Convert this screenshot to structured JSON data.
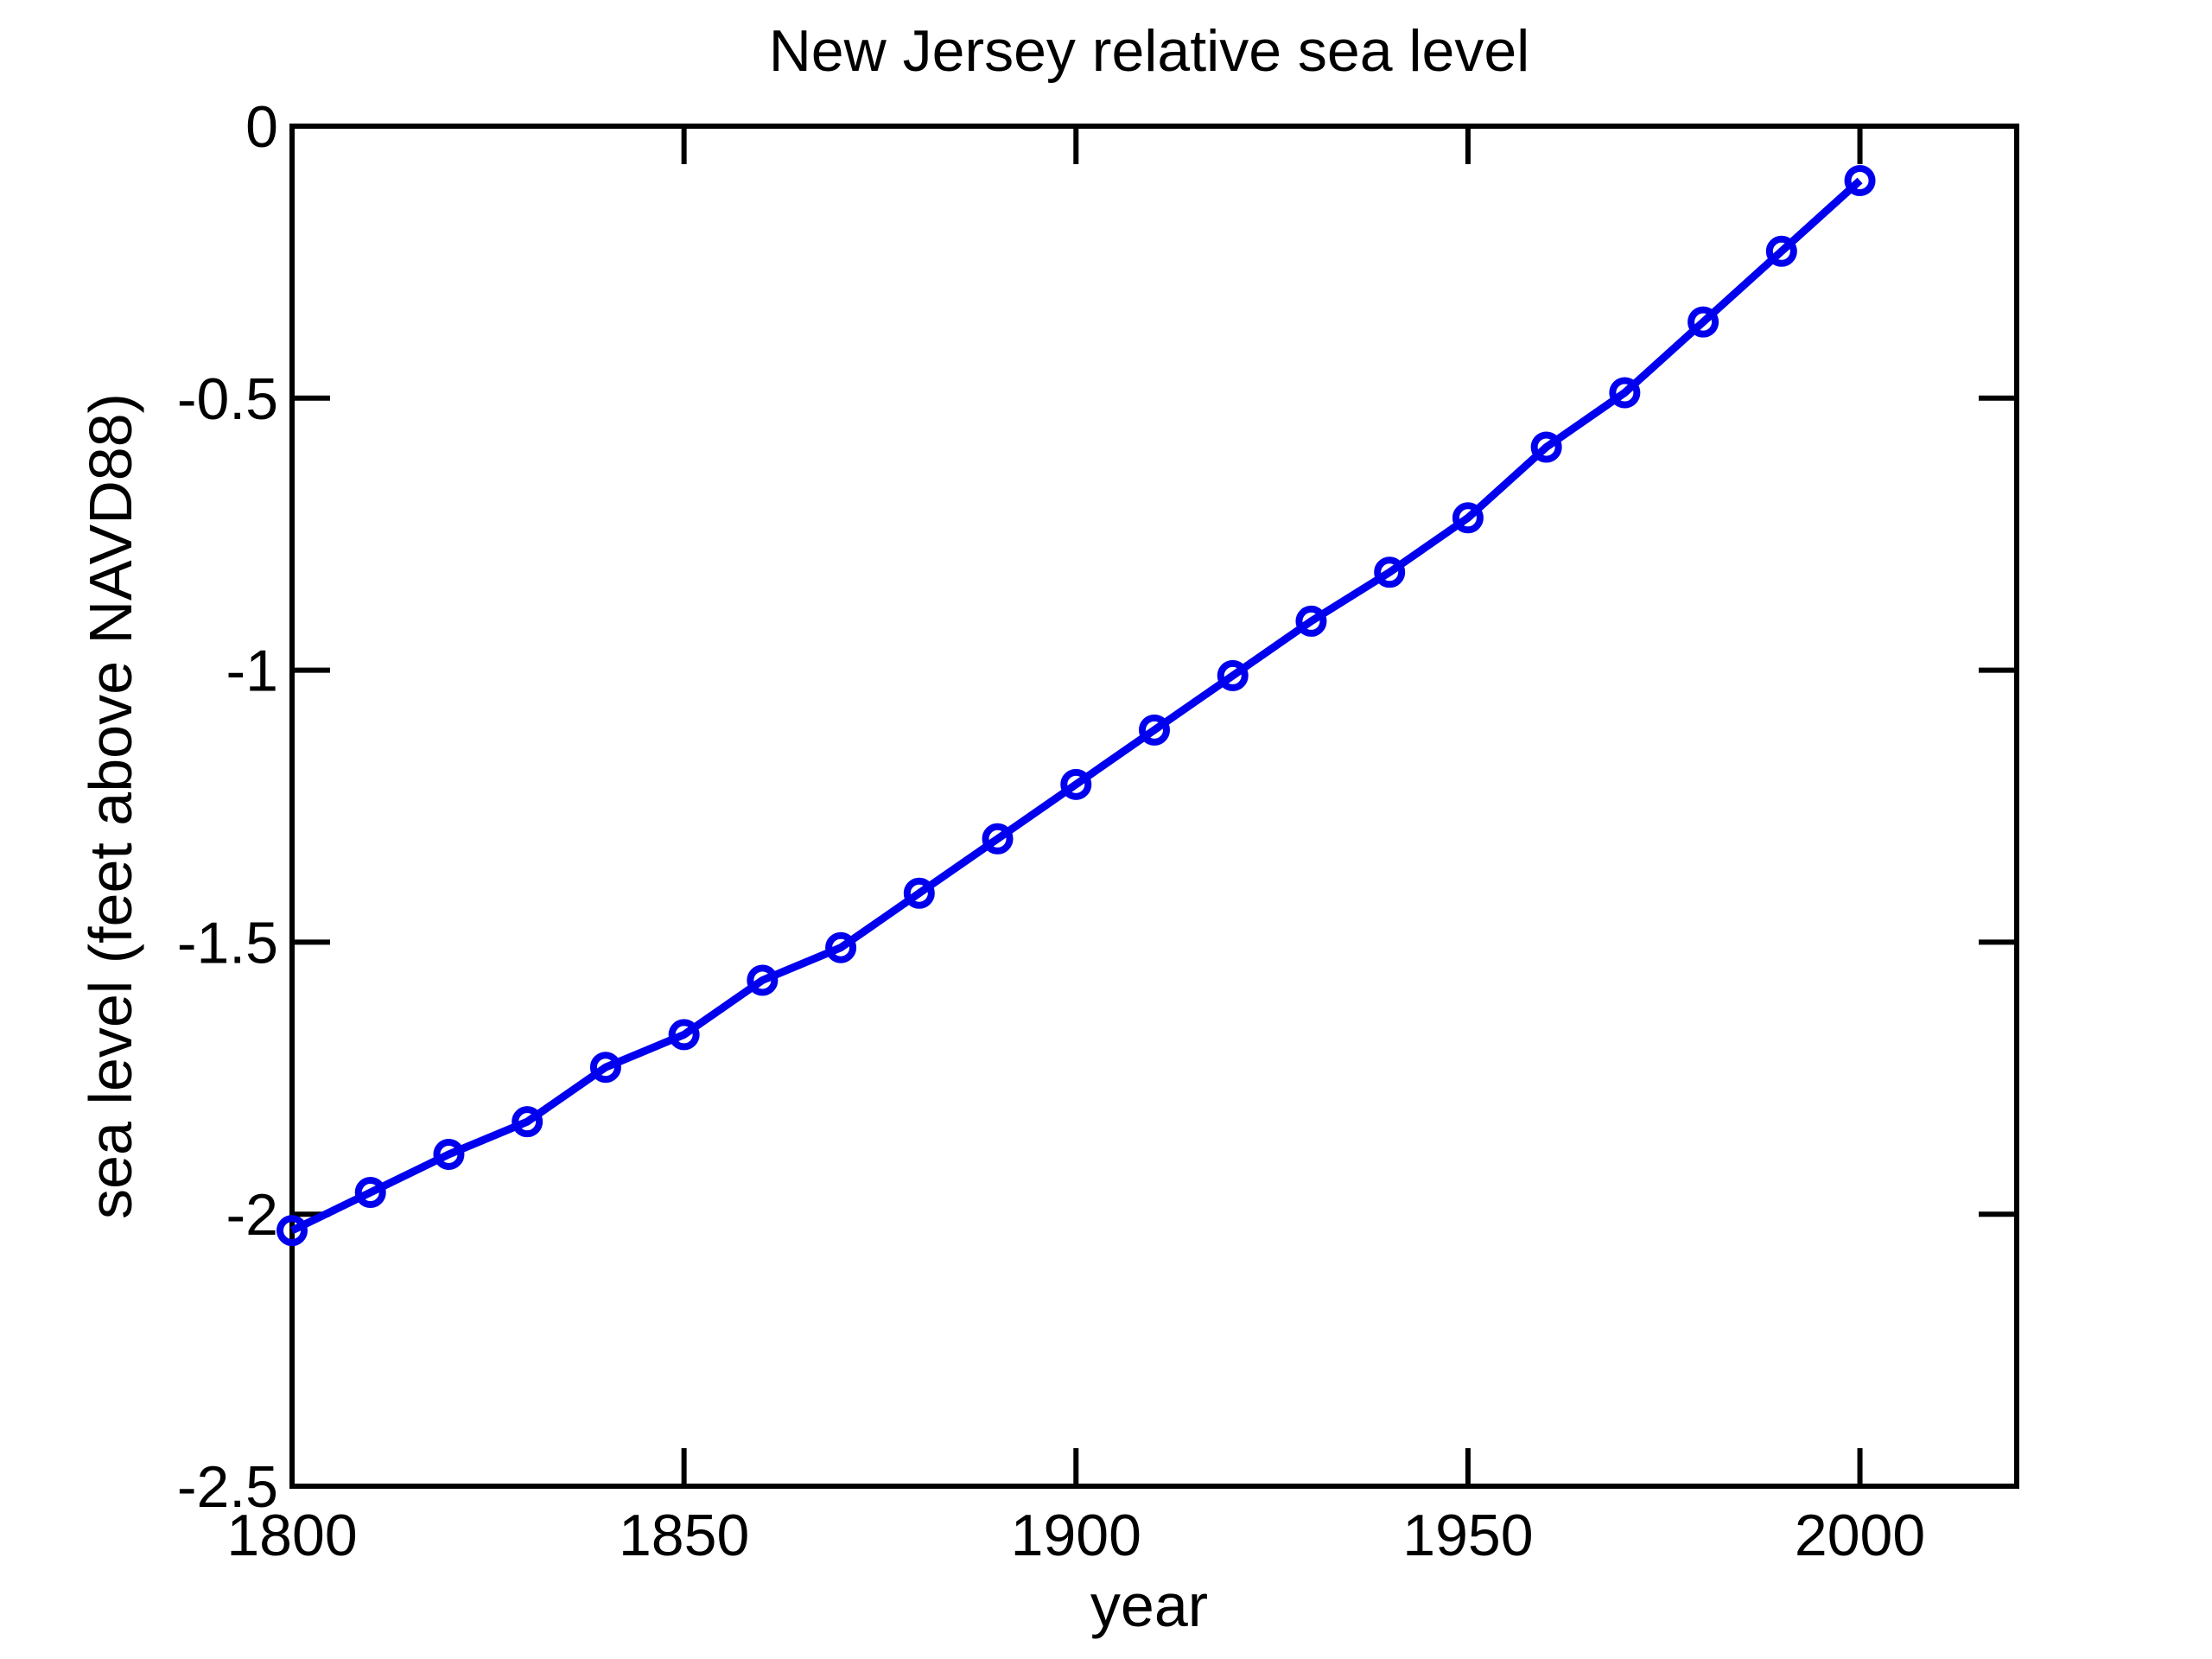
{
  "chart_data": {
    "type": "line",
    "title": "New Jersey relative sea level",
    "xlabel": "year",
    "ylabel": "sea level (feet above NAVD88)",
    "xlim": [
      1800,
      2020
    ],
    "ylim": [
      -2.5,
      0
    ],
    "xticks": [
      1800,
      1850,
      1900,
      1950,
      2000
    ],
    "xtick_labels": [
      "1800",
      "1850",
      "1900",
      "1950",
      "2000"
    ],
    "yticks": [
      0,
      -0.5,
      -1,
      -1.5,
      -2,
      -2.5
    ],
    "ytick_labels": [
      "0",
      "-0.5",
      "-1",
      "-1.5",
      "-2",
      "-2.5"
    ],
    "grid": false,
    "series": [
      {
        "color": "#0000ee",
        "marker": "circle",
        "x": [
          1800,
          1810,
          1820,
          1830,
          1840,
          1850,
          1860,
          1870,
          1880,
          1890,
          1900,
          1910,
          1920,
          1930,
          1940,
          1950,
          1960,
          1970,
          1980,
          1990,
          2000
        ],
        "y": [
          -2.03,
          -1.96,
          -1.89,
          -1.83,
          -1.73,
          -1.67,
          -1.57,
          -1.51,
          -1.41,
          -1.31,
          -1.21,
          -1.11,
          -1.01,
          -0.91,
          -0.82,
          -0.72,
          -0.59,
          -0.49,
          -0.36,
          -0.23,
          -0.1
        ]
      }
    ]
  }
}
